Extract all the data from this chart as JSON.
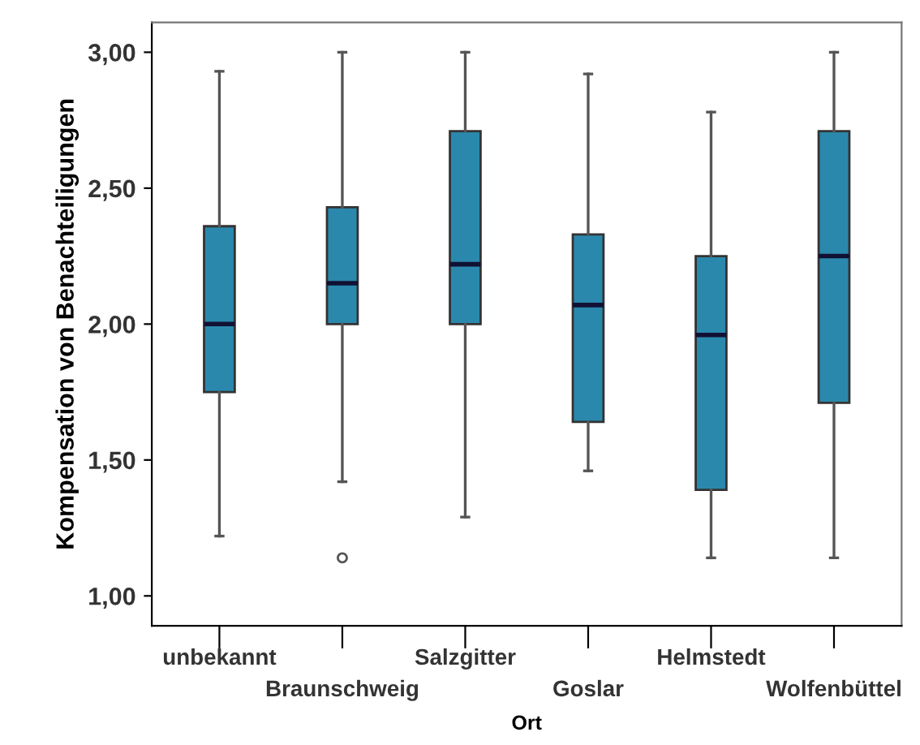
{
  "chart_data": {
    "type": "box",
    "xlabel": "Ort",
    "ylabel": "Kompensation von Benachteiligungen",
    "categories": [
      "unbekannt",
      "Braunschweig",
      "Salzgitter",
      "Goslar",
      "Helmstedt",
      "Wolfenbüttel"
    ],
    "boxes": [
      {
        "low": 1.22,
        "q1": 1.75,
        "median": 2.0,
        "q3": 2.36,
        "high": 2.93
      },
      {
        "low": 1.42,
        "q1": 2.0,
        "median": 2.15,
        "q3": 2.43,
        "high": 3.0,
        "outliers": [
          1.14
        ]
      },
      {
        "low": 1.29,
        "q1": 2.0,
        "median": 2.22,
        "q3": 2.71,
        "high": 3.0
      },
      {
        "low": 1.46,
        "q1": 1.64,
        "median": 2.07,
        "q3": 2.33,
        "high": 2.92
      },
      {
        "low": 1.14,
        "q1": 1.39,
        "median": 1.96,
        "q3": 2.25,
        "high": 2.78
      },
      {
        "low": 1.14,
        "q1": 1.71,
        "median": 2.25,
        "q3": 2.71,
        "high": 3.0
      }
    ],
    "color": "#2a88ad",
    "ylim": [
      0.89,
      3.11
    ],
    "yticks": [
      {
        "value": 1.0,
        "label": "1,00"
      },
      {
        "value": 1.5,
        "label": "1,50"
      },
      {
        "value": 2.0,
        "label": "2,00"
      },
      {
        "value": 2.5,
        "label": "2,50"
      },
      {
        "value": 3.0,
        "label": "3,00"
      }
    ],
    "grid": false
  }
}
